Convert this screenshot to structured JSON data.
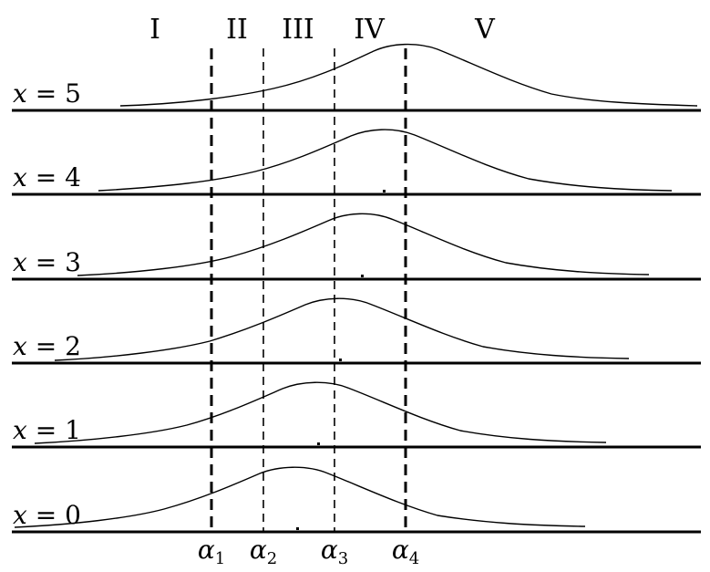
{
  "regions": [
    "I",
    "II",
    "III",
    "IV",
    "V"
  ],
  "rows": [
    {
      "var": "x",
      "eq": " = ",
      "value": "5"
    },
    {
      "var": "x",
      "eq": " = ",
      "value": "4"
    },
    {
      "var": "x",
      "eq": " = ",
      "value": "3"
    },
    {
      "var": "x",
      "eq": " = ",
      "value": "2"
    },
    {
      "var": "x",
      "eq": " = ",
      "value": "1"
    },
    {
      "var": "x",
      "eq": " = ",
      "value": "0"
    }
  ],
  "thresholds": [
    {
      "symbol": "α",
      "sub": "1"
    },
    {
      "symbol": "α",
      "sub": "2"
    },
    {
      "symbol": "α",
      "sub": "3"
    },
    {
      "symbol": "α",
      "sub": "4"
    }
  ]
}
